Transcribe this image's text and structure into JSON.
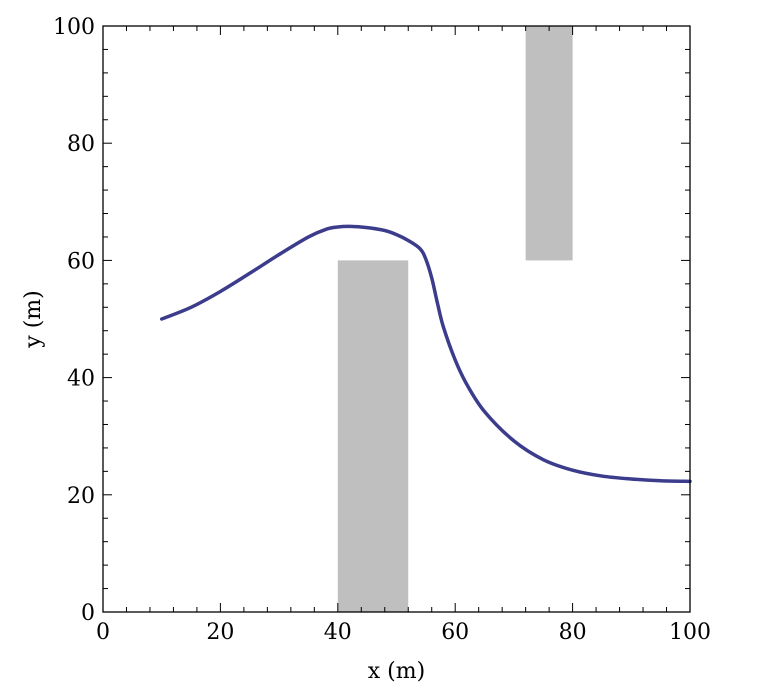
{
  "chart_data": {
    "type": "line",
    "xlabel": "x (m)",
    "ylabel": "y (m)",
    "xlim": [
      0,
      100
    ],
    "ylim": [
      0,
      100
    ],
    "x_ticks": [
      0,
      20,
      40,
      60,
      80,
      100
    ],
    "y_ticks": [
      0,
      20,
      40,
      60,
      80,
      100
    ],
    "grid": false,
    "obstacles": [
      {
        "x_range": [
          40,
          52
        ],
        "y_range": [
          0,
          60
        ]
      },
      {
        "x_range": [
          72,
          80
        ],
        "y_range": [
          60,
          100
        ]
      }
    ],
    "series": [
      {
        "color": "#3c3c8c",
        "x": [
          10,
          15,
          20,
          25,
          30,
          35,
          38,
          40,
          42,
          45,
          48,
          50,
          52,
          54,
          55,
          56,
          57,
          58,
          60,
          62,
          65,
          70,
          75,
          80,
          85,
          90,
          95,
          100
        ],
        "y": [
          50,
          52,
          54.7,
          57.8,
          61,
          64,
          65.3,
          65.7,
          65.8,
          65.6,
          65.1,
          64.4,
          63.4,
          62,
          60.2,
          57,
          52.6,
          48.6,
          43,
          38.8,
          34.2,
          29.2,
          26,
          24.2,
          23.2,
          22.7,
          22.4,
          22.3
        ]
      }
    ],
    "obstacle_color": "#bfbfbf"
  }
}
